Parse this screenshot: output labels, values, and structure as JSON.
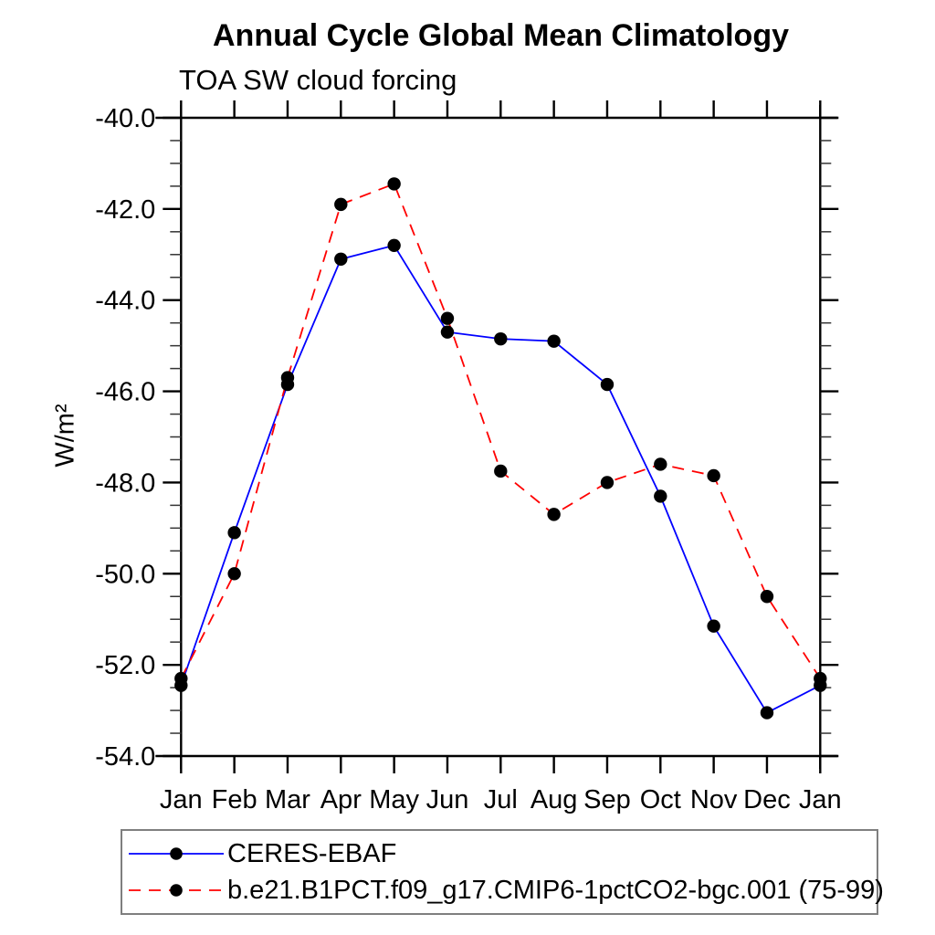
{
  "title": "Annual Cycle Global Mean Climatology",
  "chart_data": {
    "type": "line",
    "title": "Annual Cycle Global Mean Climatology",
    "subtitle": "TOA SW cloud forcing",
    "xlabel": "",
    "ylabel": "W/m²",
    "categories": [
      "Jan",
      "Feb",
      "Mar",
      "Apr",
      "May",
      "Jun",
      "Jul",
      "Aug",
      "Sep",
      "Oct",
      "Nov",
      "Dec",
      "Jan"
    ],
    "ylim": [
      -54.0,
      -40.0
    ],
    "yticks": {
      "major_step": 2.0,
      "minor_step": 0.5,
      "labels": [
        "-40.0",
        "-42.0",
        "-44.0",
        "-46.0",
        "-48.0",
        "-50.0",
        "-52.0",
        "-54.0"
      ]
    },
    "grid": false,
    "legend_position": "bottom-left",
    "marker": {
      "shape": "circle",
      "color": "#000000"
    },
    "axis_color": "#000000",
    "series": [
      {
        "name": "CERES-EBAF",
        "color": "#0000ff",
        "line_style": "solid",
        "values": [
          -52.45,
          -49.1,
          -45.85,
          -43.1,
          -42.8,
          -44.7,
          -44.85,
          -44.9,
          -45.85,
          -48.3,
          -51.15,
          -53.05,
          -52.45
        ]
      },
      {
        "name": "b.e21.B1PCT.f09_g17.CMIP6-1pctCO2-bgc.001 (75-99)",
        "color": "#ff0000",
        "line_style": "dashed",
        "values": [
          -52.3,
          -50.0,
          -45.7,
          -41.9,
          -41.45,
          -44.4,
          -47.75,
          -48.7,
          -48.0,
          -47.6,
          -47.85,
          -50.5,
          -52.3
        ]
      }
    ]
  }
}
